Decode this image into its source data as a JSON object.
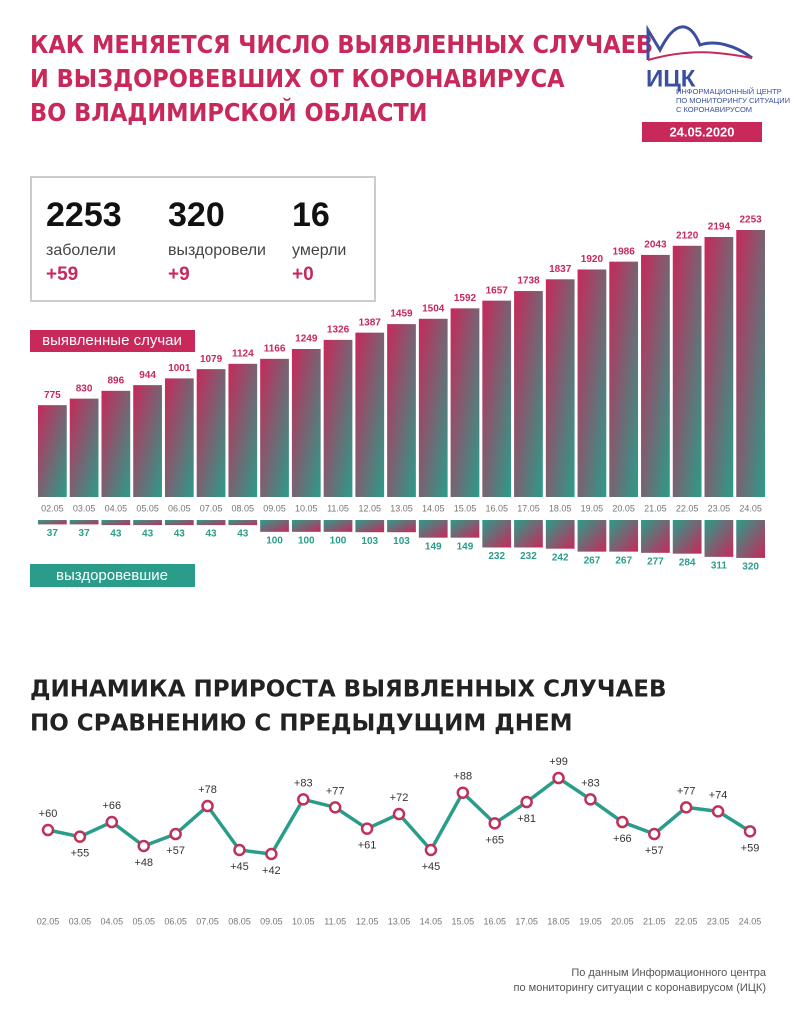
{
  "header": {
    "title": [
      "КАК МЕНЯЕТСЯ ЧИСЛО ВЫЯВЛЕННЫХ СЛУЧАЕВ",
      "И ВЫЗДОРОВЕВШИХ ОТ КОРОНАВИРУСА",
      "ВО ВЛАДИМИРСКОЙ ОБЛАСТИ"
    ],
    "logo": "ИЦК",
    "logo_text": [
      "ИНФОРМАЦИОННЫЙ ЦЕНТР",
      "ПО МОНИТОРИНГУ СИТУАЦИИ",
      "С КОРОНАВИРУСОМ"
    ],
    "date": "24.05.2020"
  },
  "stats": [
    {
      "value": "2253",
      "label": "заболели",
      "delta": "+59"
    },
    {
      "value": "320",
      "label": "выздоровели",
      "delta": "+9"
    },
    {
      "value": "16",
      "label": "умерли",
      "delta": "+0"
    }
  ],
  "chart_data": [
    {
      "type": "bar",
      "categories": [
        "02.05",
        "03.05",
        "04.05",
        "05.05",
        "06.05",
        "07.05",
        "08.05",
        "09.05",
        "10.05",
        "11.05",
        "12.05",
        "13.05",
        "14.05",
        "15.05",
        "16.05",
        "17.05",
        "18.05",
        "19.05",
        "20.05",
        "21.05",
        "22.05",
        "23.05",
        "24.05"
      ],
      "series": [
        {
          "name": "выявленные случаи",
          "color": "#c8285a",
          "values": [
            775,
            830,
            896,
            944,
            1001,
            1079,
            1124,
            1166,
            1249,
            1326,
            1387,
            1459,
            1504,
            1592,
            1657,
            1738,
            1837,
            1920,
            1986,
            2043,
            2120,
            2194,
            2253
          ]
        },
        {
          "name": "выздоровевшие",
          "color": "#2a9d8a",
          "values": [
            37,
            37,
            43,
            43,
            43,
            43,
            43,
            100,
            100,
            100,
            103,
            103,
            149,
            149,
            232,
            232,
            242,
            267,
            267,
            277,
            284,
            311,
            320
          ]
        }
      ]
    },
    {
      "type": "line",
      "title": [
        "ДИНАМИКА ПРИРОСТА ВЫЯВЛЕННЫХ СЛУЧАЕВ",
        "ПО СРАВНЕНИЮ С ПРЕДЫДУЩИМ ДНЕМ"
      ],
      "categories": [
        "02.05",
        "03.05",
        "04.05",
        "05.05",
        "06.05",
        "07.05",
        "08.05",
        "09.05",
        "10.05",
        "11.05",
        "12.05",
        "13.05",
        "14.05",
        "15.05",
        "16.05",
        "17.05",
        "18.05",
        "19.05",
        "20.05",
        "21.05",
        "22.05",
        "23.05",
        "24.05"
      ],
      "color": "#2a9d8a",
      "marker_color": "#c0305a",
      "values": [
        60,
        55,
        66,
        48,
        57,
        78,
        45,
        42,
        83,
        77,
        61,
        72,
        45,
        88,
        65,
        81,
        99,
        83,
        66,
        57,
        77,
        74,
        59
      ],
      "value_labels": [
        "+60",
        "+55",
        "+66",
        "+48",
        "+57",
        "+78",
        "+45",
        "+42",
        "+83",
        "+77",
        "+61",
        "+72",
        "+45",
        "+88",
        "+65",
        "+81",
        "+99",
        "+83",
        "+66",
        "+57",
        "+77",
        "+74",
        "+59"
      ]
    }
  ],
  "footer": [
    "По данным Информационного центра",
    "по мониторингу ситуации с коронавирусом (ИЦК)"
  ]
}
